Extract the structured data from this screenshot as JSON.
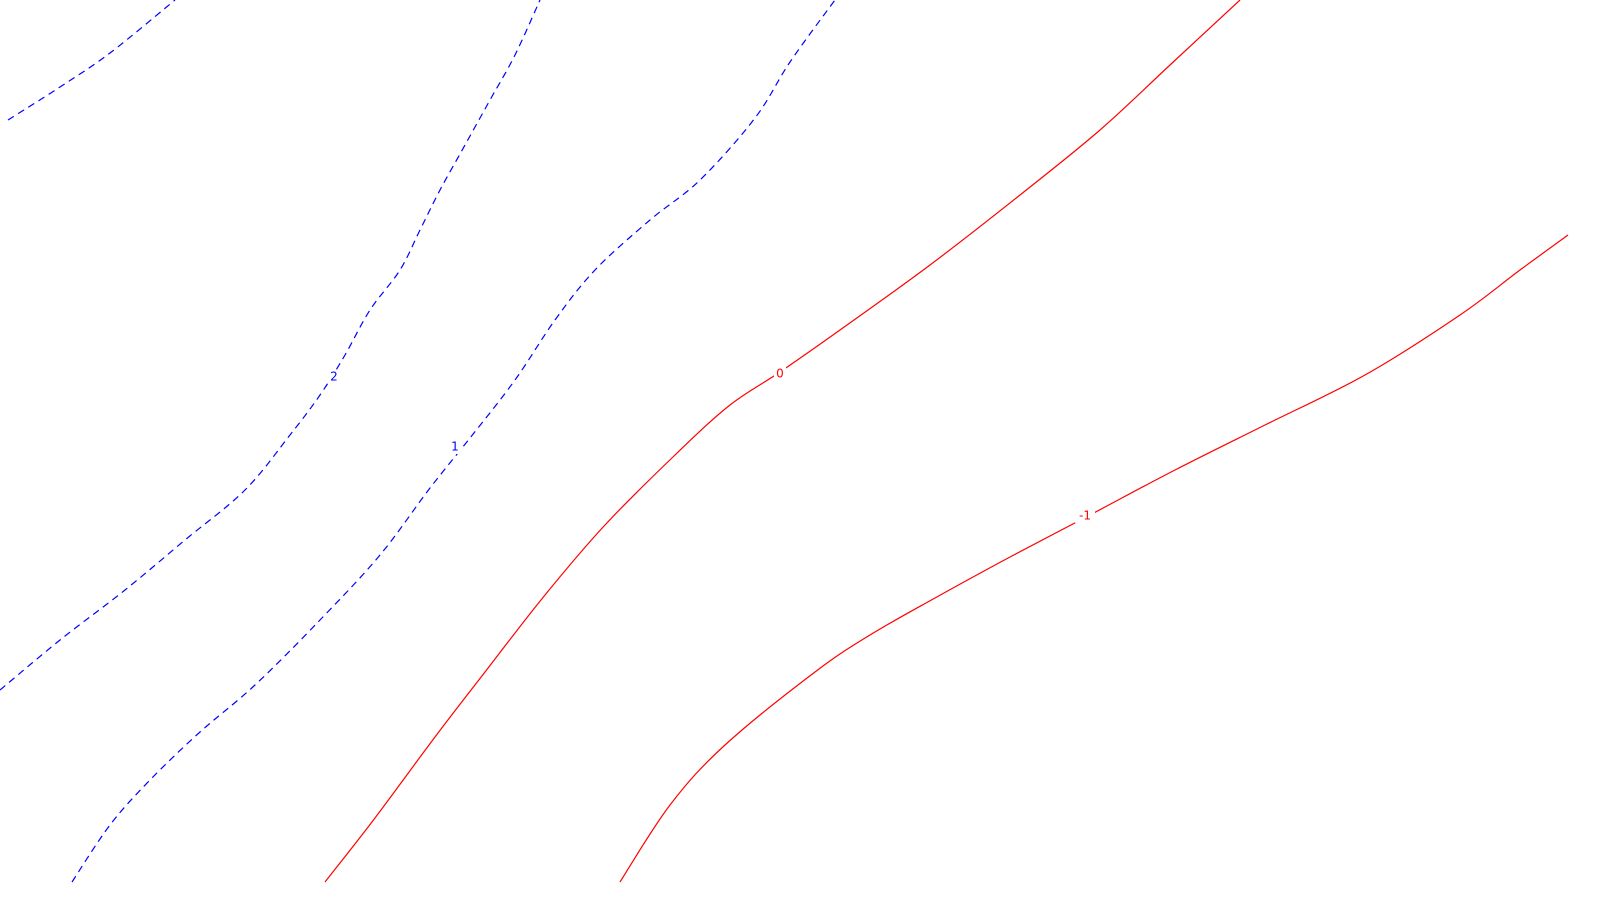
{
  "chart_data": {
    "type": "contour",
    "contours": [
      {
        "level": 2,
        "label": "2",
        "color": "#0000ff",
        "style": "dashed",
        "points": [
          [
            8,
            120
          ],
          [
            60,
            87
          ],
          [
            110,
            53
          ],
          [
            175,
            0
          ]
        ]
      },
      {
        "level": 2,
        "label": "2",
        "color": "#0000ff",
        "style": "dashed",
        "points": [
          [
            0,
            690
          ],
          [
            60,
            640
          ],
          [
            125,
            590
          ],
          [
            185,
            540
          ],
          [
            245,
            490
          ],
          [
            290,
            435
          ],
          [
            320,
            395
          ],
          [
            345,
            355
          ],
          [
            370,
            310
          ],
          [
            400,
            270
          ],
          [
            420,
            230
          ],
          [
            440,
            190
          ],
          [
            465,
            145
          ],
          [
            490,
            100
          ],
          [
            515,
            55
          ],
          [
            540,
            0
          ]
        ]
      },
      {
        "level": 1,
        "label": "1",
        "color": "#0000ff",
        "style": "dashed",
        "points": [
          [
            72,
            882
          ],
          [
            110,
            825
          ],
          [
            150,
            780
          ],
          [
            200,
            732
          ],
          [
            255,
            685
          ],
          [
            320,
            620
          ],
          [
            380,
            555
          ],
          [
            430,
            488
          ],
          [
            470,
            438
          ],
          [
            515,
            380
          ],
          [
            555,
            320
          ],
          [
            595,
            270
          ],
          [
            650,
            220
          ],
          [
            700,
            180
          ],
          [
            755,
            118
          ],
          [
            790,
            62
          ],
          [
            835,
            0
          ]
        ]
      },
      {
        "level": 0,
        "label": "0",
        "color": "#ff0000",
        "style": "solid",
        "points": [
          [
            325,
            882
          ],
          [
            375,
            818
          ],
          [
            435,
            737
          ],
          [
            485,
            672
          ],
          [
            545,
            595
          ],
          [
            605,
            525
          ],
          [
            675,
            455
          ],
          [
            730,
            405
          ],
          [
            780,
            372
          ],
          [
            840,
            330
          ],
          [
            930,
            265
          ],
          [
            1020,
            195
          ],
          [
            1100,
            130
          ],
          [
            1170,
            65
          ],
          [
            1240,
            0
          ]
        ]
      },
      {
        "level": -1,
        "label": "-1",
        "color": "#ff0000",
        "style": "solid",
        "points": [
          [
            620,
            882
          ],
          [
            670,
            805
          ],
          [
            725,
            745
          ],
          [
            815,
            672
          ],
          [
            870,
            635
          ],
          [
            935,
            598
          ],
          [
            1010,
            557
          ],
          [
            1090,
            515
          ],
          [
            1175,
            470
          ],
          [
            1265,
            425
          ],
          [
            1365,
            375
          ],
          [
            1460,
            315
          ],
          [
            1520,
            270
          ],
          [
            1568,
            235
          ]
        ]
      }
    ],
    "labels": [
      {
        "text": "2",
        "level": 2,
        "color": "#0000ff",
        "at": [
          334,
          377
        ]
      },
      {
        "text": "1",
        "level": 1,
        "color": "#0000ff",
        "at": [
          455,
          447
        ]
      },
      {
        "text": "0",
        "level": 0,
        "color": "#ff0000",
        "at": [
          780,
          374
        ]
      },
      {
        "text": "-1",
        "level": -1,
        "color": "#ff0000",
        "at": [
          1085,
          516
        ]
      }
    ]
  }
}
